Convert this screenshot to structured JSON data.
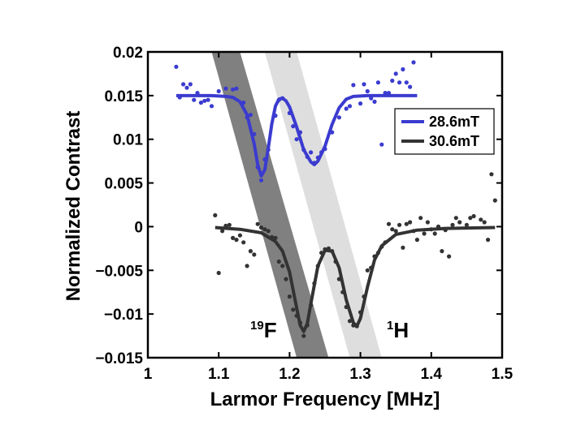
{
  "chart_data": {
    "type": "scatter",
    "xlabel": "Larmor Frequency [MHz]",
    "ylabel": "Normalized Contrast",
    "xlim": [
      1.0,
      1.5
    ],
    "ylim": [
      -0.015,
      0.02
    ],
    "x_ticks": [
      1,
      1.1,
      1.2,
      1.3,
      1.4,
      1.5
    ],
    "x_tick_labels": [
      "1",
      "1.1",
      "1.2",
      "1.3",
      "1.4",
      "1.5"
    ],
    "y_ticks": [
      0.02,
      0.015,
      0.01,
      0.005,
      0,
      -0.005,
      -0.01,
      -0.015
    ],
    "y_tick_labels": [
      "0.02",
      "0.015",
      "0.01",
      "0.005",
      "0",
      "−0.005",
      "−0.01",
      "−0.015"
    ],
    "grid": false,
    "legend_position": "right",
    "series": [
      {
        "name": "28.6mT",
        "color": "#3b3bd0",
        "points": [
          [
            1.04,
            0.0183
          ],
          [
            1.045,
            0.0148
          ],
          [
            1.05,
            0.0163
          ],
          [
            1.055,
            0.0159
          ],
          [
            1.06,
            0.0163
          ],
          [
            1.065,
            0.0145
          ],
          [
            1.07,
            0.0153
          ],
          [
            1.075,
            0.0142
          ],
          [
            1.08,
            0.0144
          ],
          [
            1.085,
            0.0145
          ],
          [
            1.09,
            0.0138
          ],
          [
            1.1,
            0.0155
          ],
          [
            1.11,
            0.0158
          ],
          [
            1.12,
            0.0157
          ],
          [
            1.125,
            0.0158
          ],
          [
            1.135,
            0.0142
          ],
          [
            1.14,
            0.0125
          ],
          [
            1.145,
            0.0128
          ],
          [
            1.15,
            0.0106
          ],
          [
            1.155,
            0.0068
          ],
          [
            1.16,
            0.0053
          ],
          [
            1.165,
            0.0077
          ],
          [
            1.17,
            0.0088
          ],
          [
            1.18,
            0.0127
          ],
          [
            1.185,
            0.0145
          ],
          [
            1.19,
            0.0147
          ],
          [
            1.2,
            0.013
          ],
          [
            1.205,
            0.0115
          ],
          [
            1.21,
            0.01
          ],
          [
            1.215,
            0.0108
          ],
          [
            1.22,
            0.0088
          ],
          [
            1.225,
            0.008
          ],
          [
            1.23,
            0.0085
          ],
          [
            1.235,
            0.0073
          ],
          [
            1.24,
            0.0079
          ],
          [
            1.245,
            0.0085
          ],
          [
            1.25,
            0.0089
          ],
          [
            1.26,
            0.0108
          ],
          [
            1.27,
            0.0125
          ],
          [
            1.28,
            0.0135
          ],
          [
            1.285,
            0.0138
          ],
          [
            1.29,
            0.0162
          ],
          [
            1.3,
            0.0141
          ],
          [
            1.305,
            0.0163
          ],
          [
            1.31,
            0.0155
          ],
          [
            1.315,
            0.0147
          ],
          [
            1.32,
            0.0143
          ],
          [
            1.325,
            0.0165
          ],
          [
            1.335,
            0.0153
          ],
          [
            1.34,
            0.0153
          ],
          [
            1.345,
            0.0167
          ],
          [
            1.35,
            0.0175
          ],
          [
            1.355,
            0.0165
          ],
          [
            1.36,
            0.018
          ],
          [
            1.365,
            0.0165
          ],
          [
            1.37,
            0.016
          ],
          [
            1.375,
            0.0188
          ],
          [
            1.33,
            0.0094
          ]
        ],
        "fit": [
          [
            1.04,
            0.015
          ],
          [
            1.09,
            0.015
          ],
          [
            1.11,
            0.0149
          ],
          [
            1.12,
            0.0148
          ],
          [
            1.13,
            0.0143
          ],
          [
            1.14,
            0.0128
          ],
          [
            1.15,
            0.0095
          ],
          [
            1.155,
            0.0071
          ],
          [
            1.16,
            0.0058
          ],
          [
            1.165,
            0.0065
          ],
          [
            1.17,
            0.009
          ],
          [
            1.175,
            0.0118
          ],
          [
            1.18,
            0.0138
          ],
          [
            1.185,
            0.0146
          ],
          [
            1.19,
            0.0147
          ],
          [
            1.195,
            0.0144
          ],
          [
            1.2,
            0.0137
          ],
          [
            1.21,
            0.0114
          ],
          [
            1.22,
            0.0088
          ],
          [
            1.23,
            0.0074
          ],
          [
            1.235,
            0.0071
          ],
          [
            1.24,
            0.0075
          ],
          [
            1.25,
            0.0092
          ],
          [
            1.26,
            0.0117
          ],
          [
            1.27,
            0.0136
          ],
          [
            1.28,
            0.0146
          ],
          [
            1.29,
            0.0149
          ],
          [
            1.31,
            0.015
          ],
          [
            1.38,
            0.015
          ]
        ]
      },
      {
        "name": "30.6mT",
        "color": "#333333",
        "points": [
          [
            1.095,
            0.0013
          ],
          [
            1.1,
            -0.0053
          ],
          [
            1.105,
            -0.0005
          ],
          [
            1.11,
            0.0001
          ],
          [
            1.115,
            0.0002
          ],
          [
            1.12,
            -0.0013
          ],
          [
            1.125,
            -0.0015
          ],
          [
            1.13,
            -0.001
          ],
          [
            1.135,
            -0.0018
          ],
          [
            1.14,
            -0.0045
          ],
          [
            1.145,
            -0.0028
          ],
          [
            1.15,
            -0.0032
          ],
          [
            1.155,
            0.0003
          ],
          [
            1.16,
            -0.0001
          ],
          [
            1.165,
            -0.0003
          ],
          [
            1.17,
            -0.0005
          ],
          [
            1.175,
            -0.0012
          ],
          [
            1.18,
            -0.0013
          ],
          [
            1.185,
            -0.004
          ],
          [
            1.19,
            -0.0045
          ],
          [
            1.195,
            -0.006
          ],
          [
            1.2,
            -0.008
          ],
          [
            1.205,
            -0.0095
          ],
          [
            1.21,
            -0.0102
          ],
          [
            1.215,
            -0.011
          ],
          [
            1.22,
            -0.0125
          ],
          [
            1.225,
            -0.0113
          ],
          [
            1.23,
            -0.009
          ],
          [
            1.235,
            -0.0065
          ],
          [
            1.24,
            -0.0045
          ],
          [
            1.245,
            -0.003
          ],
          [
            1.25,
            -0.0026
          ],
          [
            1.255,
            -0.0025
          ],
          [
            1.26,
            -0.0028
          ],
          [
            1.265,
            -0.004
          ],
          [
            1.27,
            -0.006
          ],
          [
            1.275,
            -0.0075
          ],
          [
            1.28,
            -0.0092
          ],
          [
            1.285,
            -0.0108
          ],
          [
            1.29,
            -0.0113
          ],
          [
            1.295,
            -0.0114
          ],
          [
            1.3,
            -0.0098
          ],
          [
            1.305,
            -0.008
          ],
          [
            1.31,
            -0.005
          ],
          [
            1.315,
            -0.0047
          ],
          [
            1.32,
            -0.0034
          ],
          [
            1.325,
            -0.003
          ],
          [
            1.33,
            -0.0023
          ],
          [
            1.335,
            -0.0018
          ],
          [
            1.34,
            0.0003
          ],
          [
            1.345,
            -0.0003
          ],
          [
            1.35,
            -0.0005
          ],
          [
            1.355,
            0.0002
          ],
          [
            1.36,
            -0.0024
          ],
          [
            1.365,
            0.0003
          ],
          [
            1.37,
            0.0005
          ],
          [
            1.375,
            -0.0005
          ],
          [
            1.38,
            -0.0015
          ],
          [
            1.385,
            0.001
          ],
          [
            1.39,
            -0.0008
          ],
          [
            1.395,
            0.0005
          ],
          [
            1.4,
            -0.0003
          ],
          [
            1.405,
            -0.0008
          ],
          [
            1.41,
            0.0
          ],
          [
            1.415,
            -0.0028
          ],
          [
            1.42,
            -0.0004
          ],
          [
            1.425,
            -0.0034
          ],
          [
            1.43,
            0.0002
          ],
          [
            1.435,
            0.001
          ],
          [
            1.44,
            0.0005
          ],
          [
            1.45,
            0.0002
          ],
          [
            1.455,
            0.001
          ],
          [
            1.46,
            0.0012
          ],
          [
            1.47,
            0.0008
          ],
          [
            1.475,
            0.0005
          ],
          [
            1.48,
            -0.0015
          ],
          [
            1.485,
            0.006
          ],
          [
            1.49,
            0.003
          ]
        ],
        "fit": [
          [
            1.095,
            -0.0001
          ],
          [
            1.13,
            -0.0003
          ],
          [
            1.16,
            -0.0007
          ],
          [
            1.18,
            -0.0017
          ],
          [
            1.19,
            -0.0028
          ],
          [
            1.2,
            -0.0052
          ],
          [
            1.21,
            -0.0093
          ],
          [
            1.215,
            -0.0113
          ],
          [
            1.22,
            -0.012
          ],
          [
            1.225,
            -0.0111
          ],
          [
            1.23,
            -0.0088
          ],
          [
            1.24,
            -0.0045
          ],
          [
            1.25,
            -0.0027
          ],
          [
            1.26,
            -0.0028
          ],
          [
            1.27,
            -0.0047
          ],
          [
            1.28,
            -0.0084
          ],
          [
            1.29,
            -0.011
          ],
          [
            1.295,
            -0.0114
          ],
          [
            1.3,
            -0.0105
          ],
          [
            1.31,
            -0.0069
          ],
          [
            1.32,
            -0.0038
          ],
          [
            1.33,
            -0.0022
          ],
          [
            1.35,
            -0.0009
          ],
          [
            1.38,
            -0.0004
          ],
          [
            1.42,
            -0.0002
          ],
          [
            1.49,
            -0.0001
          ]
        ]
      }
    ],
    "bands": [
      {
        "label_sup": "19",
        "label": "F",
        "color": "#555555",
        "opacity": 0.75,
        "x_top": [
          1.09,
          1.13
        ],
        "x_bottom": [
          1.21,
          1.255
        ]
      },
      {
        "label_sup": "1",
        "label": "H",
        "color": "#c8c8c8",
        "opacity": 0.6,
        "x_top": [
          1.165,
          1.21
        ],
        "x_bottom": [
          1.285,
          1.33
        ]
      }
    ]
  }
}
